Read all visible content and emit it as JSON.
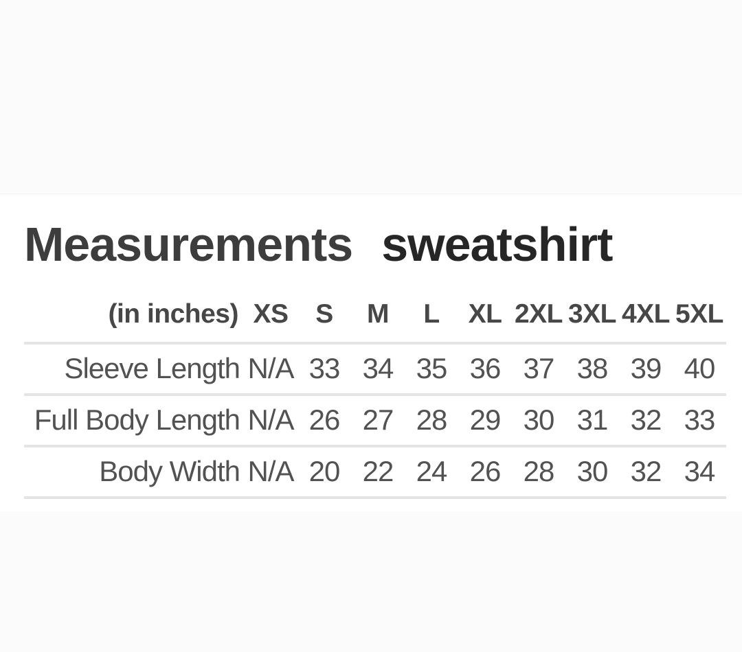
{
  "page": {
    "title": "Measurements",
    "subtitle": "sweatshirt"
  },
  "table": {
    "unit_label": "(in inches)",
    "sizes": [
      "XS",
      "S",
      "M",
      "L",
      "XL",
      "2XL",
      "3XL",
      "4XL",
      "5XL"
    ],
    "rows": [
      {
        "label": "Sleeve Length",
        "values": [
          "N/A",
          "33",
          "34",
          "35",
          "36",
          "37",
          "38",
          "39",
          "40"
        ]
      },
      {
        "label": "Full Body Length",
        "values": [
          "N/A",
          "26",
          "27",
          "28",
          "29",
          "30",
          "31",
          "32",
          "33"
        ]
      },
      {
        "label": "Body Width",
        "values": [
          "N/A",
          "20",
          "22",
          "24",
          "26",
          "28",
          "30",
          "32",
          "34"
        ]
      }
    ]
  },
  "colors": {
    "page_background": "#fbfbfb",
    "card_background": "#ffffff",
    "title_text": "#3d3d3d",
    "subtitle_text": "#262626",
    "header_text": "#474747",
    "body_text": "#525252",
    "divider": "#e4e4e4"
  }
}
